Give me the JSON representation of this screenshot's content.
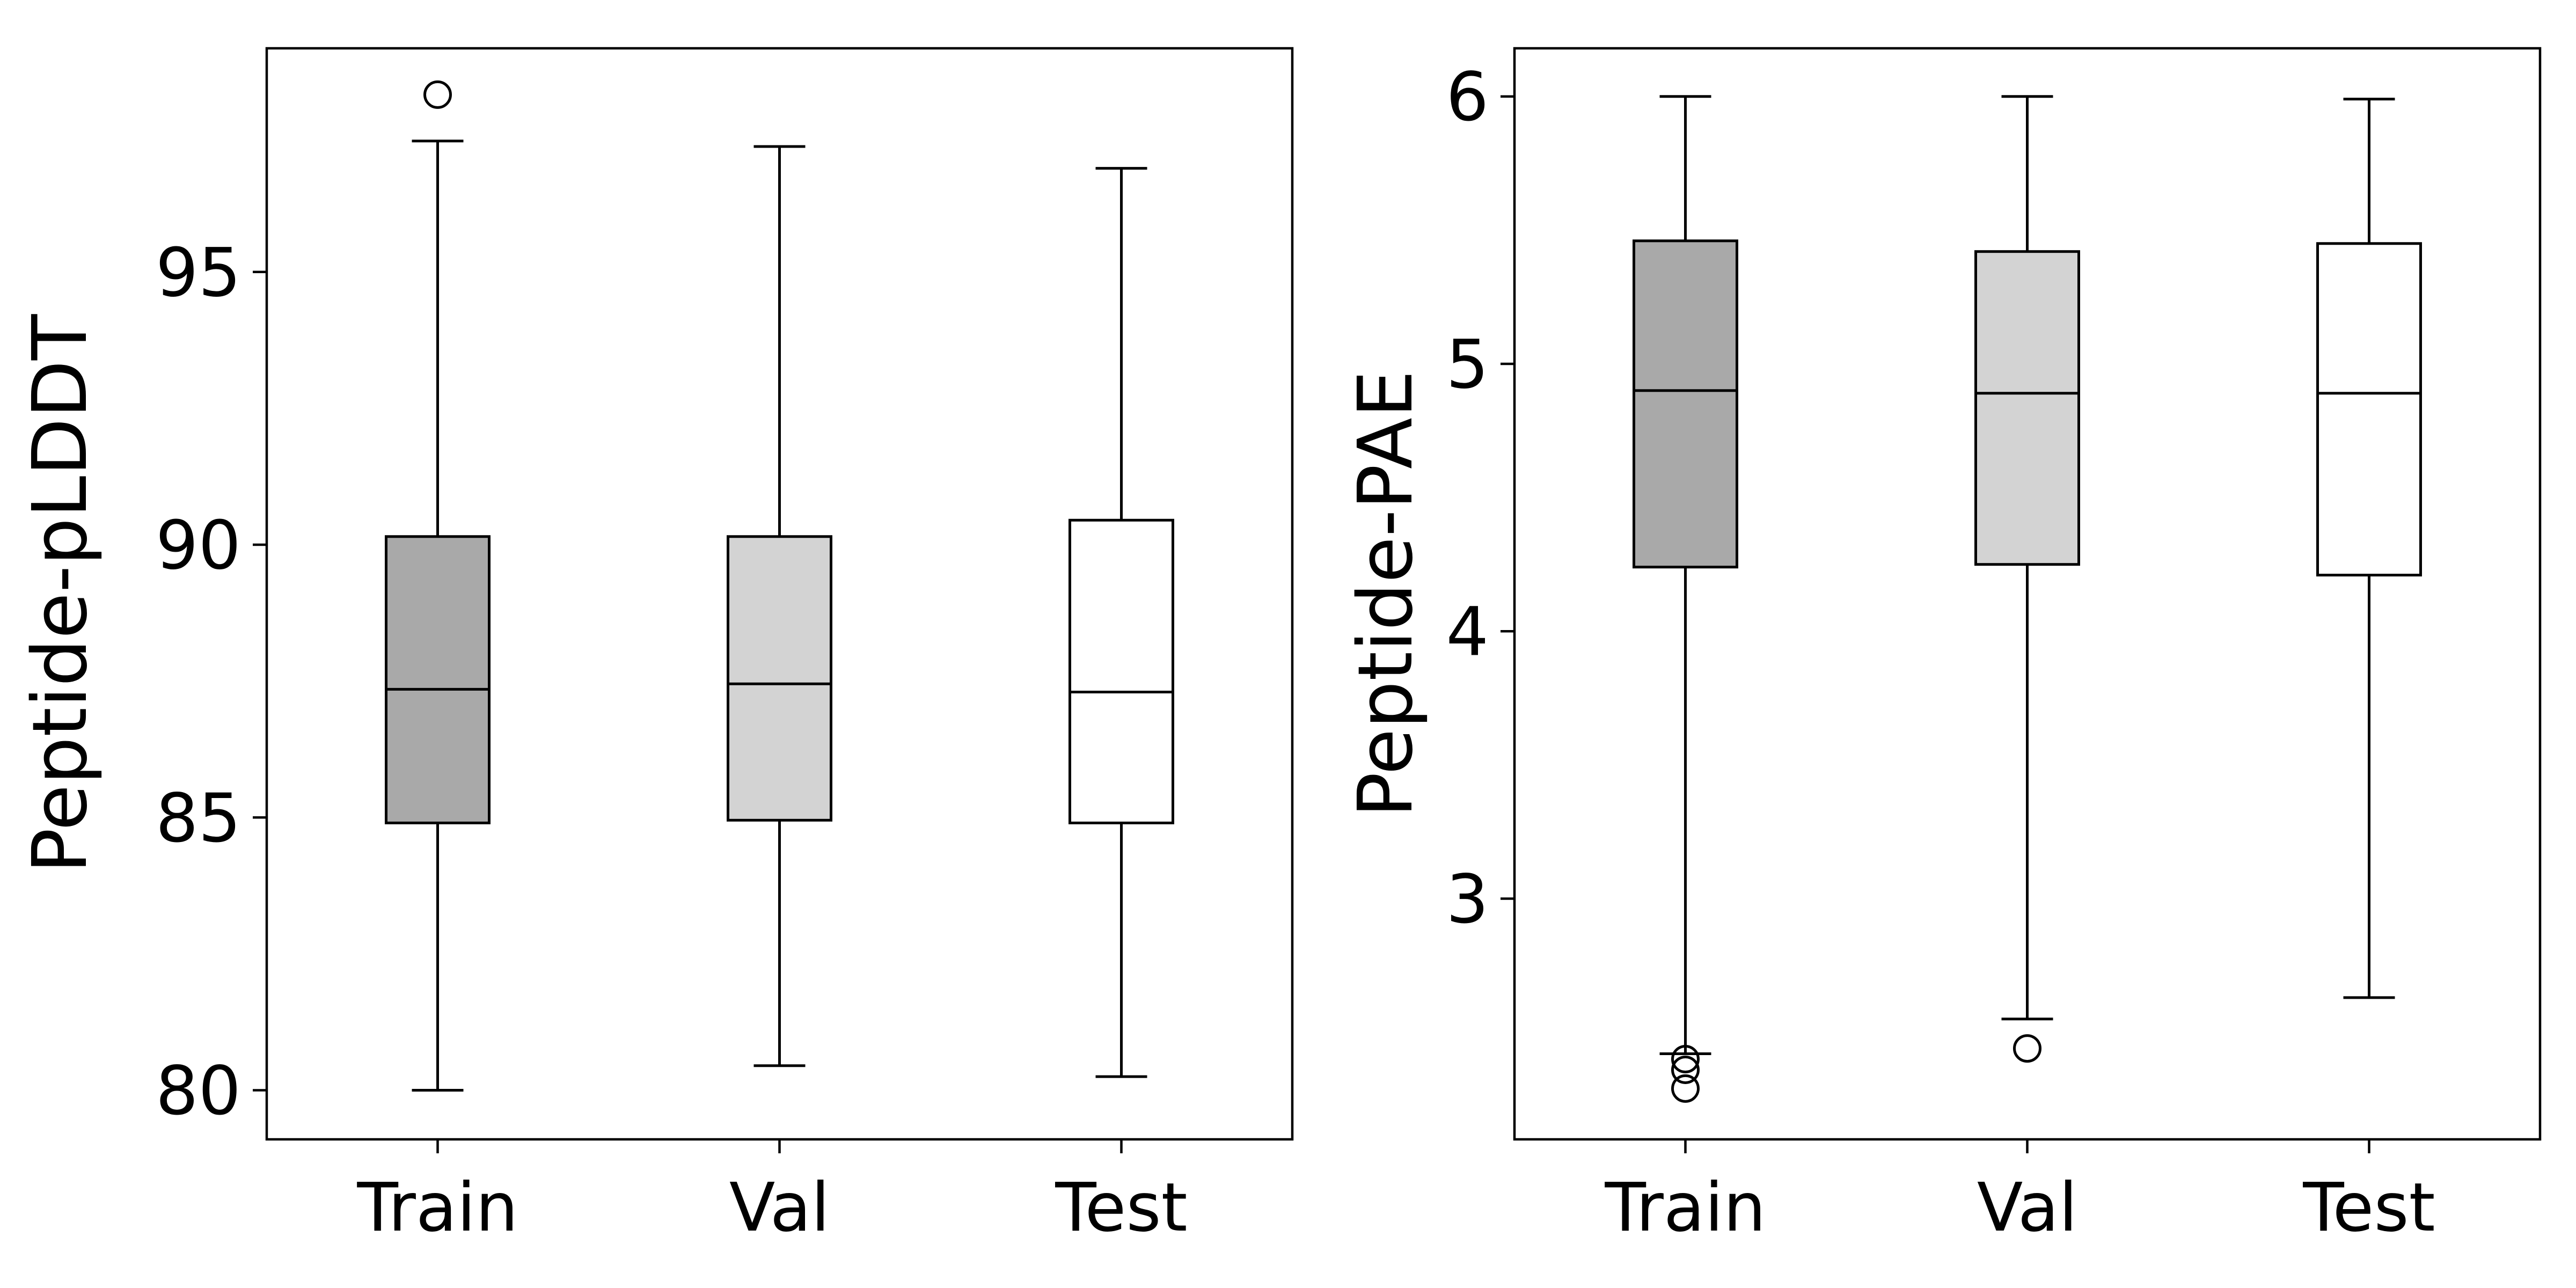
{
  "chart_data": [
    {
      "type": "boxplot",
      "title": "",
      "xlabel": "",
      "ylabel": "Peptide-pLDDT",
      "categories": [
        "Train",
        "Val",
        "Test"
      ],
      "ylim": [
        79.1,
        99.1
      ],
      "yticks": [
        80,
        85,
        90,
        95
      ],
      "fill_colors": [
        "#a9a9a9",
        "#d3d3d3",
        "#ffffff"
      ],
      "boxes": [
        {
          "whisker_low": 80.0,
          "q1": 84.9,
          "median": 87.35,
          "q3": 90.15,
          "whisker_high": 97.4,
          "outliers": [
            98.25
          ]
        },
        {
          "whisker_low": 80.45,
          "q1": 84.95,
          "median": 87.45,
          "q3": 90.15,
          "whisker_high": 97.3,
          "outliers": []
        },
        {
          "whisker_low": 80.25,
          "q1": 84.9,
          "median": 87.3,
          "q3": 90.45,
          "whisker_high": 96.9,
          "outliers": []
        }
      ]
    },
    {
      "type": "boxplot",
      "title": "",
      "xlabel": "",
      "ylabel": "Peptide-PAE",
      "categories": [
        "Train",
        "Val",
        "Test"
      ],
      "ylim": [
        2.1,
        6.18
      ],
      "yticks": [
        3,
        4,
        5,
        6
      ],
      "fill_colors": [
        "#a9a9a9",
        "#d3d3d3",
        "#ffffff"
      ],
      "boxes": [
        {
          "whisker_low": 2.42,
          "q1": 4.24,
          "median": 4.9,
          "q3": 5.46,
          "whisker_high": 6.0,
          "outliers": [
            2.4,
            2.36,
            2.29
          ]
        },
        {
          "whisker_low": 2.55,
          "q1": 4.25,
          "median": 4.89,
          "q3": 5.42,
          "whisker_high": 6.0,
          "outliers": [
            2.44
          ]
        },
        {
          "whisker_low": 2.63,
          "q1": 4.21,
          "median": 4.89,
          "q3": 5.45,
          "whisker_high": 5.99,
          "outliers": []
        }
      ]
    }
  ]
}
